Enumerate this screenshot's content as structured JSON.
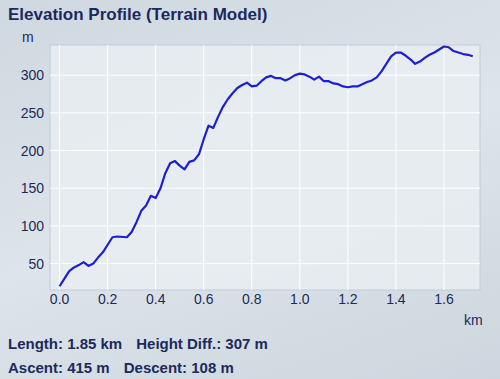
{
  "chart_data": {
    "type": "line",
    "title": "Elevation Profile (Terrain Model)",
    "y_label": "m",
    "x_label": "km",
    "x": [
      0.0,
      0.02,
      0.04,
      0.06,
      0.08,
      0.1,
      0.12,
      0.14,
      0.16,
      0.18,
      0.2,
      0.22,
      0.24,
      0.28,
      0.3,
      0.32,
      0.34,
      0.36,
      0.38,
      0.4,
      0.42,
      0.44,
      0.46,
      0.48,
      0.5,
      0.52,
      0.54,
      0.56,
      0.58,
      0.6,
      0.62,
      0.64,
      0.66,
      0.68,
      0.7,
      0.72,
      0.74,
      0.76,
      0.78,
      0.8,
      0.82,
      0.84,
      0.86,
      0.88,
      0.9,
      0.92,
      0.94,
      0.96,
      0.98,
      1.0,
      1.02,
      1.04,
      1.06,
      1.08,
      1.1,
      1.12,
      1.14,
      1.16,
      1.18,
      1.2,
      1.22,
      1.24,
      1.26,
      1.28,
      1.3,
      1.32,
      1.34,
      1.36,
      1.38,
      1.4,
      1.42,
      1.44,
      1.46,
      1.48,
      1.5,
      1.52,
      1.54,
      1.56,
      1.58,
      1.6,
      1.62,
      1.64,
      1.66,
      1.68,
      1.7,
      1.72
    ],
    "values": [
      20,
      30,
      40,
      45,
      48,
      52,
      47,
      50,
      58,
      65,
      75,
      85,
      86,
      85,
      92,
      105,
      120,
      127,
      140,
      137,
      150,
      170,
      183,
      186,
      180,
      175,
      185,
      187,
      195,
      215,
      233,
      230,
      245,
      258,
      268,
      276,
      283,
      287,
      290,
      285,
      286,
      292,
      297,
      299,
      296,
      296,
      293,
      296,
      300,
      302,
      301,
      298,
      294,
      298,
      292,
      292,
      289,
      288,
      285,
      284,
      285,
      285,
      288,
      291,
      293,
      297,
      305,
      315,
      325,
      330,
      330,
      326,
      321,
      315,
      318,
      323,
      327,
      330,
      334,
      338,
      337,
      332,
      330,
      328,
      327,
      325
    ],
    "color": "#1e1ed2",
    "xlim": [
      -0.04,
      1.75
    ],
    "ylim": [
      15,
      340
    ],
    "xticks": [
      {
        "value": 0,
        "label": "0.0"
      },
      {
        "value": 0.2,
        "label": "0.2"
      },
      {
        "value": 0.4,
        "label": "0.4"
      },
      {
        "value": 0.6,
        "label": "0.6"
      },
      {
        "value": 0.8,
        "label": "0.8"
      },
      {
        "value": 1.0,
        "label": "1.0"
      },
      {
        "value": 1.2,
        "label": "1.2"
      },
      {
        "value": 1.4,
        "label": "1.4"
      },
      {
        "value": 1.6,
        "label": "1.6"
      }
    ],
    "yticks": [
      50,
      100,
      150,
      200,
      250,
      300
    ],
    "grid": true,
    "annotations": [
      "Length: 1.85 km",
      "Height Diff.: 307 m",
      "Ascent: 415 m",
      "Descent: 108 m"
    ]
  }
}
